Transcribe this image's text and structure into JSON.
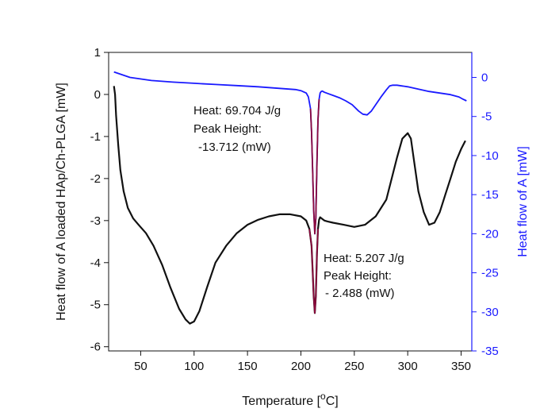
{
  "chart_data": {
    "type": "line",
    "xlabel": "Temperature [",
    "xlabel_sup": "o",
    "xlabel_unit": "C]",
    "ylabel_left": "Heat flow of A loaded HAp/Ch-PLGA [mW]",
    "ylabel_right": "Heat flow of A [mW]",
    "xlim": [
      20,
      360
    ],
    "ylim_left": [
      -6.1,
      1.0
    ],
    "ylim_right": [
      -35,
      3.2
    ],
    "x_ticks": [
      50,
      100,
      150,
      200,
      250,
      300,
      350
    ],
    "y_left_ticks": [
      1,
      0,
      -1,
      -2,
      -3,
      -4,
      -5,
      -6
    ],
    "y_right_ticks": [
      0,
      -5,
      -10,
      -15,
      -20,
      -25,
      -30,
      -35
    ],
    "grid": false,
    "colors": {
      "left_series": "#111111",
      "right_series": "#1a1aff",
      "peak_highlight": "#8b0a3c"
    },
    "series": [
      {
        "axis": "right",
        "x": [
          25,
          40,
          60,
          80,
          100,
          120,
          140,
          160,
          180,
          195,
          200,
          205,
          207,
          209,
          210,
          211,
          212,
          213,
          214,
          215,
          216,
          217,
          218,
          219,
          220,
          222,
          226,
          230,
          236,
          242,
          248,
          254,
          258,
          262,
          266,
          270,
          275,
          280,
          283,
          286,
          290,
          300,
          310,
          320,
          330,
          340,
          348,
          352,
          355
        ],
        "y": [
          0.7,
          0.0,
          -0.4,
          -0.6,
          -0.75,
          -0.9,
          -1.05,
          -1.2,
          -1.4,
          -1.55,
          -1.7,
          -2.0,
          -2.5,
          -4.0,
          -7.0,
          -12.0,
          -17.0,
          -20.0,
          -18.0,
          -11.0,
          -5.5,
          -2.8,
          -2.0,
          -1.8,
          -1.75,
          -1.9,
          -2.1,
          -2.3,
          -2.6,
          -3.0,
          -3.5,
          -4.3,
          -4.7,
          -4.8,
          -4.3,
          -3.5,
          -2.5,
          -1.6,
          -1.1,
          -1.0,
          -1.0,
          -1.2,
          -1.5,
          -1.8,
          -2.0,
          -2.2,
          -2.5,
          -2.8,
          -3.0
        ]
      },
      {
        "axis": "left",
        "x": [
          25,
          26,
          27,
          29,
          31,
          34,
          38,
          43,
          48,
          55,
          62,
          70,
          78,
          86,
          92,
          96,
          100,
          105,
          112,
          120,
          130,
          140,
          150,
          160,
          170,
          180,
          190,
          200,
          205,
          208,
          210,
          211,
          212,
          213,
          214,
          215,
          216,
          217,
          218,
          220,
          222,
          225,
          230,
          240,
          250,
          260,
          270,
          280,
          286,
          290,
          295,
          300,
          303,
          306,
          310,
          315,
          320,
          325,
          330,
          335,
          340,
          345,
          350,
          354
        ],
        "y": [
          0.2,
          0.0,
          -0.5,
          -1.2,
          -1.8,
          -2.3,
          -2.7,
          -2.95,
          -3.1,
          -3.3,
          -3.6,
          -4.05,
          -4.6,
          -5.1,
          -5.35,
          -5.45,
          -5.4,
          -5.15,
          -4.6,
          -4.0,
          -3.6,
          -3.3,
          -3.1,
          -2.98,
          -2.9,
          -2.85,
          -2.85,
          -2.9,
          -3.0,
          -3.2,
          -3.6,
          -4.2,
          -4.8,
          -5.2,
          -4.8,
          -3.8,
          -3.2,
          -2.98,
          -2.92,
          -2.96,
          -3.0,
          -3.02,
          -3.05,
          -3.1,
          -3.15,
          -3.1,
          -2.9,
          -2.5,
          -1.9,
          -1.5,
          -1.05,
          -0.92,
          -1.05,
          -1.6,
          -2.3,
          -2.8,
          -3.1,
          -3.05,
          -2.8,
          -2.4,
          -2.0,
          -1.6,
          -1.3,
          -1.1
        ]
      }
    ],
    "peak_highlights": [
      {
        "axis": "right",
        "x_start": 208,
        "x_end": 217
      },
      {
        "axis": "left",
        "x_start": 208,
        "x_end": 216
      }
    ],
    "annotations": [
      {
        "lines": [
          "Heat: 69.704 J/g",
          "Peak Height:",
          "-13.712 (mW)"
        ]
      },
      {
        "lines": [
          "Heat: 5.207 J/g",
          "Peak Height:",
          "- 2.488 (mW)"
        ]
      }
    ]
  }
}
